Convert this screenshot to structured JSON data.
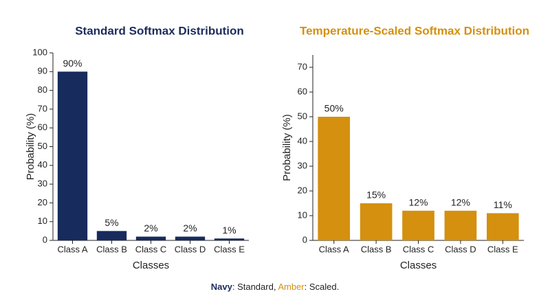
{
  "chart_data": [
    {
      "type": "bar",
      "title": "Standard Softmax Distribution",
      "title_color": "#1b2c5c",
      "x_label": "Classes",
      "y_label": "Probability (%)",
      "categories": [
        "Class A",
        "Class B",
        "Class C",
        "Class D",
        "Class E"
      ],
      "values": [
        90,
        5,
        2,
        2,
        1
      ],
      "value_labels": [
        "90%",
        "5%",
        "2%",
        "2%",
        "1%"
      ],
      "color": "#172b5c",
      "ylim": [
        0,
        100
      ],
      "yticks": [
        0,
        10,
        20,
        30,
        40,
        50,
        60,
        70,
        80,
        90,
        100
      ],
      "grid": false
    },
    {
      "type": "bar",
      "title": "Temperature-Scaled Softmax Distribution",
      "title_color": "#d4900e",
      "x_label": "Classes",
      "y_label": "Probability (%)",
      "categories": [
        "Class A",
        "Class B",
        "Class C",
        "Class D",
        "Class E"
      ],
      "values": [
        50,
        15,
        12,
        12,
        11
      ],
      "value_labels": [
        "50%",
        "15%",
        "12%",
        "12%",
        "11%"
      ],
      "color": "#d4900e",
      "ylim": [
        0,
        75
      ],
      "yticks": [
        0,
        10,
        20,
        30,
        40,
        50,
        60,
        70
      ],
      "grid": false
    }
  ],
  "caption": {
    "parts": [
      {
        "text": "Navy",
        "color": "#1b2c5c",
        "bold": true
      },
      {
        "text": ": Standard, "
      },
      {
        "text": "Amber",
        "color": "#d4900e"
      },
      {
        "text": ": Scaled."
      }
    ]
  }
}
